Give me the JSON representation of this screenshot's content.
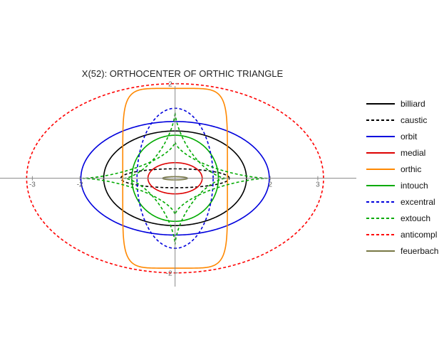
{
  "chart_data": {
    "type": "line",
    "title": "X(52): ORTHOCENTER OF ORTHIC TRIANGLE",
    "xlabel": "",
    "ylabel": "",
    "xlim": [
      -3.68,
      3.81
    ],
    "ylim": [
      -2.29,
      2.07
    ],
    "x_ticks": [
      {
        "value": -3,
        "label": "-3"
      },
      {
        "value": -2,
        "label": "-2"
      },
      {
        "value": 2,
        "label": "2"
      },
      {
        "value": 3,
        "label": "3"
      }
    ],
    "y_ticks": [
      {
        "value": 2,
        "label": "2"
      },
      {
        "value": -2,
        "label": "-2"
      }
    ],
    "grid": false,
    "legend_position": "right",
    "series": [
      {
        "name": "billiard",
        "color": "#000000",
        "dashed": false,
        "shape": "ellipse",
        "a": 1.5,
        "b": 1.0
      },
      {
        "name": "caustic",
        "color": "#000000",
        "dashed": true,
        "shape": "ellipse",
        "a": 1.14,
        "b": 0.2
      },
      {
        "name": "orbit",
        "color": "#0000dd",
        "dashed": false,
        "shape": "ellipse",
        "a": 1.98,
        "b": 1.2
      },
      {
        "name": "medial",
        "color": "#dd0000",
        "dashed": false,
        "shape": "ellipse",
        "a": 0.57,
        "b": 0.33
      },
      {
        "name": "orthic",
        "color": "#ff8800",
        "dashed": false,
        "shape": "superellipse",
        "a": 1.1,
        "b": 1.9,
        "n": 6
      },
      {
        "name": "intouch",
        "color": "#00aa00",
        "dashed": false,
        "shape": "ellipse",
        "a": 0.91,
        "b": 0.91
      },
      {
        "name": "excentral",
        "color": "#0000dd",
        "dashed": true,
        "shape": "ellipse",
        "a": 0.8,
        "b": 1.48
      },
      {
        "name": "extouch",
        "color": "#00aa00",
        "dashed": true,
        "shape": "astroid_pair",
        "a": 1.94,
        "b": 1.4
      },
      {
        "name": "anticompl",
        "color": "#ff0000",
        "dashed": true,
        "shape": "ellipse",
        "a": 3.12,
        "b": 2.0
      },
      {
        "name": "feuerbach",
        "color": "#777744",
        "dashed": false,
        "shape": "ellipse",
        "a": 0.26,
        "b": 0.035
      }
    ]
  }
}
